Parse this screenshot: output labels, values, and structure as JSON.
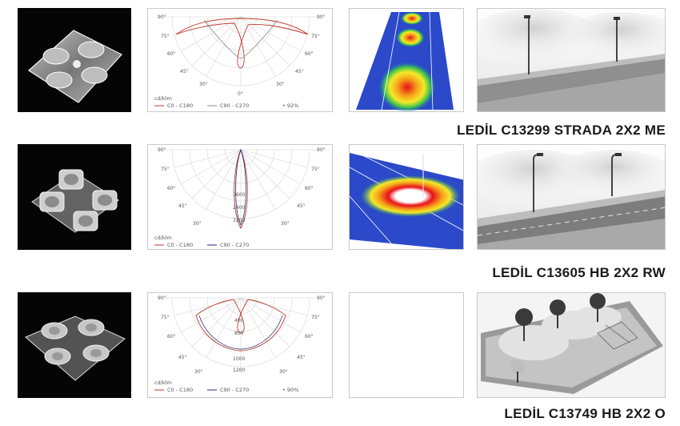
{
  "rows": [
    {
      "product_title": "LEDİL C13299 STRADA 2X2 ME",
      "polar": {
        "unit_label": "cd/klm",
        "legend_c0": "C0 - C180",
        "legend_c90": "C90 - C270",
        "efficiency": "• 92%",
        "angle_labels": {
          "a90l": "90°",
          "a90r": "90°",
          "a75l": "75°",
          "a75r": "75°",
          "a60l": "60°",
          "a60r": "60°",
          "a45l": "45°",
          "a45r": "45°",
          "a30l": "30°",
          "a30r": "30°",
          "a0": "0°"
        },
        "radial_labels": []
      },
      "has_distribution": true
    },
    {
      "product_title": "LEDİL C13605 HB 2X2 RW",
      "polar": {
        "unit_label": "cd/klm",
        "legend_c0": "C0 - C180",
        "legend_c90": "C90 - C270",
        "efficiency": "",
        "angle_labels": {
          "a90l": "90°",
          "a90r": "90°",
          "a75l": "75°",
          "a75r": "75°",
          "a60l": "60°",
          "a60r": "60°",
          "a45l": "45°",
          "a45r": "45°",
          "a30l": "30°",
          "a30r": "30°",
          "a0": ""
        },
        "radial_labels": [
          "1600",
          "2400",
          "3200"
        ]
      },
      "has_distribution": true
    },
    {
      "product_title": "LEDİL C13749 HB 2X2 O",
      "polar": {
        "unit_label": "cd/klm",
        "legend_c0": "C0 - C180",
        "legend_c90": "C90 - C270",
        "efficiency": "• 90%",
        "angle_labels": {
          "a90l": "90°",
          "a90r": "90°",
          "a75l": "75°",
          "a75r": "75°",
          "a60l": "60°",
          "a60r": "60°",
          "a45l": "45°",
          "a45r": "45°",
          "a30l": "30°",
          "a30r": "30°",
          "a0": ""
        },
        "radial_labels": [
          "400",
          "800",
          "1000",
          "1200"
        ]
      },
      "has_distribution": false
    }
  ],
  "colors": {
    "c0_curve": "#c0392b",
    "c90_curve": "#1f2a78",
    "title_text": "#1a1a1a",
    "cell_border": "#c9c9c9"
  }
}
